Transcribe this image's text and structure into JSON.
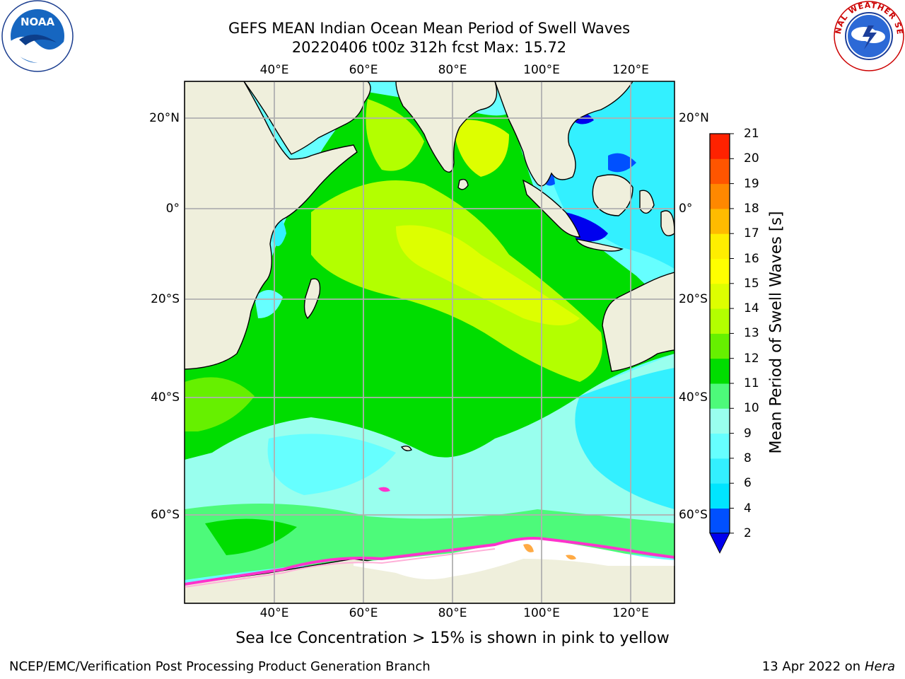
{
  "title": {
    "line1": "GEFS MEAN Indian Ocean Mean Period of Swell Waves",
    "line2": "20220406 t00z 312h fcst   Max: 15.72"
  },
  "map": {
    "lon_labels": [
      "40°E",
      "60°E",
      "80°E",
      "100°E",
      "120°E"
    ],
    "lat_labels": [
      "20°N",
      "0°",
      "20°S",
      "40°S",
      "60°S"
    ],
    "land_color": "#efefdc",
    "ice_color": "#ffffff",
    "ice_edge_colors": [
      "#ff33cc",
      "#ffb0d8",
      "#ffaa44"
    ]
  },
  "colorbar": {
    "title": "Mean Period of Swell Waves [s]",
    "levels": [
      "2",
      "4",
      "6",
      "8",
      "9",
      "10",
      "11",
      "12",
      "13",
      "14",
      "15",
      "16",
      "17",
      "18",
      "19",
      "20",
      "21"
    ],
    "colors": [
      "#0050ff",
      "#00e5ff",
      "#33f0ff",
      "#66ffff",
      "#99ffee",
      "#4dfa7a",
      "#00dd00",
      "#66f000",
      "#b3ff00",
      "#ddff00",
      "#ffff00",
      "#ffee00",
      "#ffbb00",
      "#ff8800",
      "#ff5500",
      "#ff2200"
    ],
    "under_color": "#0000ee"
  },
  "note": "Sea Ice Concentration > 15% is shown in pink to yellow",
  "footer": {
    "left": "NCEP/EMC/Verification Post Processing Product Generation Branch",
    "date": "13 Apr 2022 on ",
    "machine": "Hera"
  },
  "logos": {
    "noaa_text": "NOAA",
    "nws_text": "NATIONAL WEATHER SERVICE"
  }
}
